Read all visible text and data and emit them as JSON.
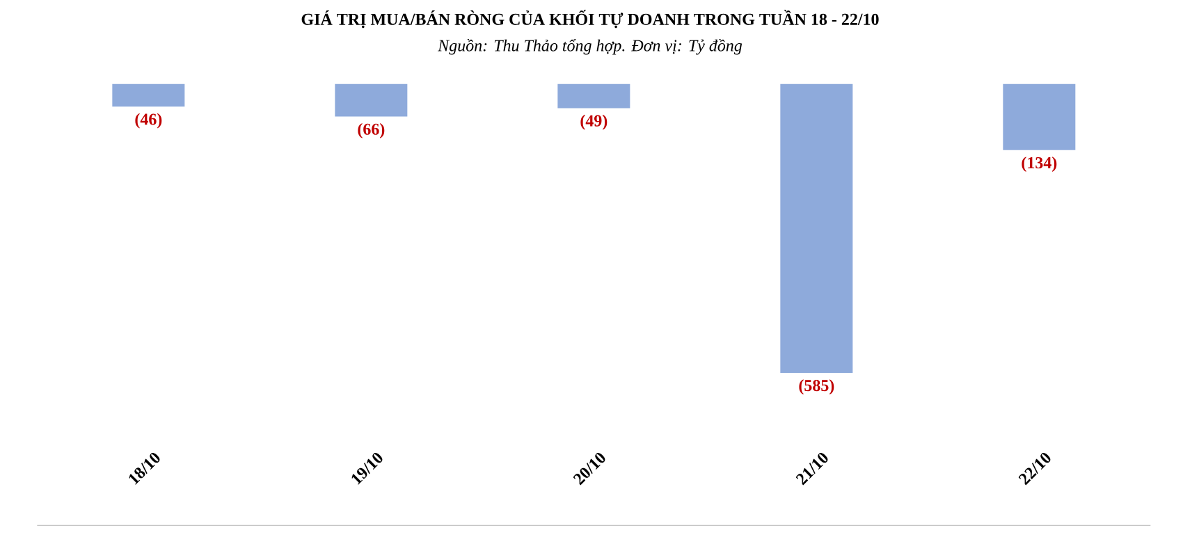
{
  "chart_data": {
    "type": "bar",
    "title": "GIÁ TRỊ MUA/BÁN RÒNG CỦA KHỐI TỰ DOANH TRONG TUẦN 18 - 22/10",
    "subtitle": "Nguồn: Thu Thảo tổng hợp. Đơn vị: Tỷ đồng",
    "categories": [
      "18/10",
      "19/10",
      "20/10",
      "21/10",
      "22/10"
    ],
    "values": [
      -46,
      -66,
      -49,
      -585,
      -134
    ],
    "value_labels": [
      "(46)",
      "(66)",
      "(49)",
      "(585)",
      "(134)"
    ],
    "color": "#8eaadb",
    "grid": false
  }
}
